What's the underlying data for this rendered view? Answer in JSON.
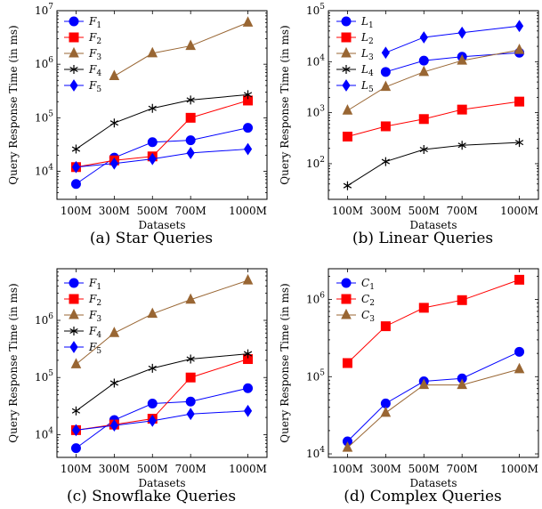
{
  "chart_data": [
    {
      "type": "line",
      "caption": "(a)  Star Queries",
      "xlabel": "Datasets",
      "ylabel": "Query Response Time (in ms)",
      "y_scale": "log",
      "ylim": [
        3000,
        10000000
      ],
      "y_ticks": [
        10000,
        100000,
        1000000,
        10000000
      ],
      "y_tick_labels": [
        [
          "10",
          "4"
        ],
        [
          "10",
          "5"
        ],
        [
          "10",
          "6"
        ],
        [
          "10",
          "7"
        ]
      ],
      "x_positions": [
        100,
        300,
        500,
        700,
        1000
      ],
      "categories": [
        "100M",
        "300M",
        "500M",
        "700M",
        "1000M"
      ],
      "xlim": [
        0,
        1100
      ],
      "grid": false,
      "legend_position": "top-left",
      "series": [
        {
          "name": "F",
          "sub": "1",
          "color": "#0000ff",
          "marker": "circle",
          "values": [
            5800,
            18000,
            35000,
            38000,
            65000
          ]
        },
        {
          "name": "F",
          "sub": "2",
          "color": "#ff0000",
          "marker": "square",
          "values": [
            12000,
            16000,
            19000,
            100000,
            210000
          ]
        },
        {
          "name": "F",
          "sub": "3",
          "color": "#996633",
          "marker": "triangle",
          "values": [
            null,
            600000,
            1600000,
            2200000,
            6000000
          ]
        },
        {
          "name": "F",
          "sub": "4",
          "color": "#000000",
          "marker": "star",
          "values": [
            26000,
            80000,
            150000,
            215000,
            270000
          ]
        },
        {
          "name": "F",
          "sub": "5",
          "color": "#0000ff",
          "marker": "diamond",
          "values": [
            12000,
            14000,
            17000,
            22000,
            26000
          ]
        }
      ]
    },
    {
      "type": "line",
      "caption": "(b)  Linear Queries",
      "xlabel": "Datasets",
      "ylabel": "Query Response Time (in ms)",
      "y_scale": "log",
      "ylim": [
        20,
        100000
      ],
      "y_ticks": [
        100,
        1000,
        10000,
        100000
      ],
      "y_tick_labels": [
        [
          "10",
          "2"
        ],
        [
          "10",
          "3"
        ],
        [
          "10",
          "4"
        ],
        [
          "10",
          "5"
        ]
      ],
      "x_positions": [
        100,
        300,
        500,
        700,
        1000
      ],
      "categories": [
        "100M",
        "300M",
        "500M",
        "700M",
        "1000M"
      ],
      "xlim": [
        0,
        1100
      ],
      "grid": false,
      "legend_position": "top-left",
      "series": [
        {
          "name": "L",
          "sub": "1",
          "color": "#0000ff",
          "marker": "circle",
          "values": [
            null,
            6300,
            10500,
            12500,
            15000
          ]
        },
        {
          "name": "L",
          "sub": "2",
          "color": "#ff0000",
          "marker": "square",
          "values": [
            340,
            540,
            750,
            1150,
            1650
          ]
        },
        {
          "name": "L",
          "sub": "3",
          "color": "#996633",
          "marker": "triangle",
          "values": [
            1100,
            3200,
            6300,
            10500,
            17000
          ]
        },
        {
          "name": "L",
          "sub": "4",
          "color": "#000000",
          "marker": "star",
          "values": [
            37,
            110,
            190,
            230,
            260
          ]
        },
        {
          "name": "L",
          "sub": "5",
          "color": "#0000ff",
          "marker": "diamond",
          "values": [
            null,
            15000,
            30000,
            37000,
            50000
          ]
        }
      ]
    },
    {
      "type": "line",
      "caption": "(c)  Snowflake Queries",
      "xlabel": "Datasets",
      "ylabel": "Query Response Time (in ms)",
      "y_scale": "log",
      "ylim": [
        4000,
        8000000
      ],
      "y_ticks": [
        10000,
        100000,
        1000000
      ],
      "y_tick_labels": [
        [
          "10",
          "4"
        ],
        [
          "10",
          "5"
        ],
        [
          "10",
          "6"
        ]
      ],
      "x_positions": [
        100,
        300,
        500,
        700,
        1000
      ],
      "categories": [
        "100M",
        "300M",
        "500M",
        "700M",
        "1000M"
      ],
      "xlim": [
        0,
        1100
      ],
      "grid": false,
      "legend_position": "top-left",
      "series": [
        {
          "name": "F",
          "sub": "1",
          "color": "#0000ff",
          "marker": "circle",
          "values": [
            5800,
            18000,
            35000,
            38000,
            65000
          ]
        },
        {
          "name": "F",
          "sub": "2",
          "color": "#ff0000",
          "marker": "square",
          "values": [
            12000,
            15000,
            19000,
            100000,
            210000
          ]
        },
        {
          "name": "F",
          "sub": "3",
          "color": "#996633",
          "marker": "triangle",
          "values": [
            170000,
            600000,
            1300000,
            2300000,
            5000000
          ]
        },
        {
          "name": "F",
          "sub": "4",
          "color": "#000000",
          "marker": "star",
          "values": [
            26000,
            80000,
            145000,
            210000,
            260000
          ]
        },
        {
          "name": "F",
          "sub": "5",
          "color": "#0000ff",
          "marker": "diamond",
          "values": [
            12000,
            14500,
            17500,
            23000,
            26000
          ]
        }
      ]
    },
    {
      "type": "line",
      "caption": "(d)  Complex Queries",
      "xlabel": "Datasets",
      "ylabel": "Query Response Time (in ms)",
      "y_scale": "log",
      "ylim": [
        9000,
        2500000
      ],
      "y_ticks": [
        10000,
        100000,
        1000000
      ],
      "y_tick_labels": [
        [
          "10",
          "4"
        ],
        [
          "10",
          "5"
        ],
        [
          "10",
          "6"
        ]
      ],
      "x_positions": [
        100,
        300,
        500,
        700,
        1000
      ],
      "categories": [
        "100M",
        "300M",
        "500M",
        "700M",
        "1000M"
      ],
      "xlim": [
        0,
        1100
      ],
      "grid": false,
      "legend_position": "top-left",
      "series": [
        {
          "name": "C",
          "sub": "1",
          "color": "#0000ff",
          "marker": "circle",
          "values": [
            14500,
            45000,
            87000,
            95000,
            210000
          ]
        },
        {
          "name": "C",
          "sub": "2",
          "color": "#ff0000",
          "marker": "square",
          "values": [
            150000,
            450000,
            780000,
            980000,
            1800000
          ]
        },
        {
          "name": "C",
          "sub": "3",
          "color": "#996633",
          "marker": "triangle",
          "values": [
            12000,
            34000,
            78000,
            78000,
            125000
          ]
        }
      ]
    }
  ]
}
